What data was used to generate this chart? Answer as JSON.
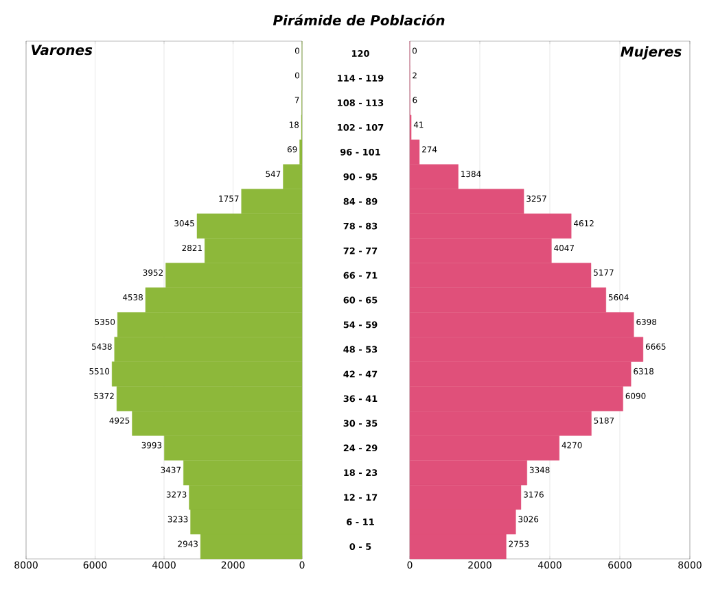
{
  "chart_data": [
    {
      "type": "bar",
      "orientation": "horizontal",
      "title": "Pirámide de Población",
      "annotations": [
        "Varones"
      ],
      "categories": [
        null,
        null,
        null,
        null,
        null,
        null,
        null,
        null,
        null,
        null,
        null,
        null,
        null,
        null,
        null,
        null,
        null,
        null,
        null,
        null,
        null
      ],
      "values": [
        0,
        0,
        7,
        18,
        69,
        547,
        1757,
        3045,
        2821,
        3952,
        4538,
        5350,
        5438,
        5510,
        5372,
        4925,
        3993,
        3437,
        3273,
        3233,
        2943
      ],
      "color": "#8db83a",
      "xlim": [
        8000,
        0
      ],
      "xticks": [
        8000,
        6000,
        4000,
        2000,
        0
      ],
      "grid": "x",
      "data_labels": true,
      "tick_labels": "x"
    },
    {
      "type": "bar",
      "orientation": "horizontal",
      "annotations": [
        "Mujeres"
      ],
      "categories": [
        "120",
        "114 - 119",
        "108 - 113",
        "102 - 107",
        "96 - 101",
        "90 - 95",
        "84 - 89",
        "78 - 83",
        "72 - 77",
        "66 - 71",
        "60 - 65",
        "54 - 59",
        "48 - 53",
        "42 - 47",
        "36 - 41",
        "30 - 35",
        "24 - 29",
        "18 - 23",
        "12 - 17",
        "6 - 11",
        "0 - 5"
      ],
      "values": [
        0,
        2,
        6,
        41,
        274,
        1384,
        3257,
        4612,
        4047,
        5177,
        5604,
        6398,
        6665,
        6318,
        6090,
        5187,
        4270,
        3348,
        3176,
        3026,
        2753
      ],
      "color": "#e0507a",
      "xlim": [
        0,
        8000
      ],
      "xticks": [
        0,
        2000,
        4000,
        6000,
        8000
      ],
      "grid": "x",
      "data_labels": true
    }
  ]
}
